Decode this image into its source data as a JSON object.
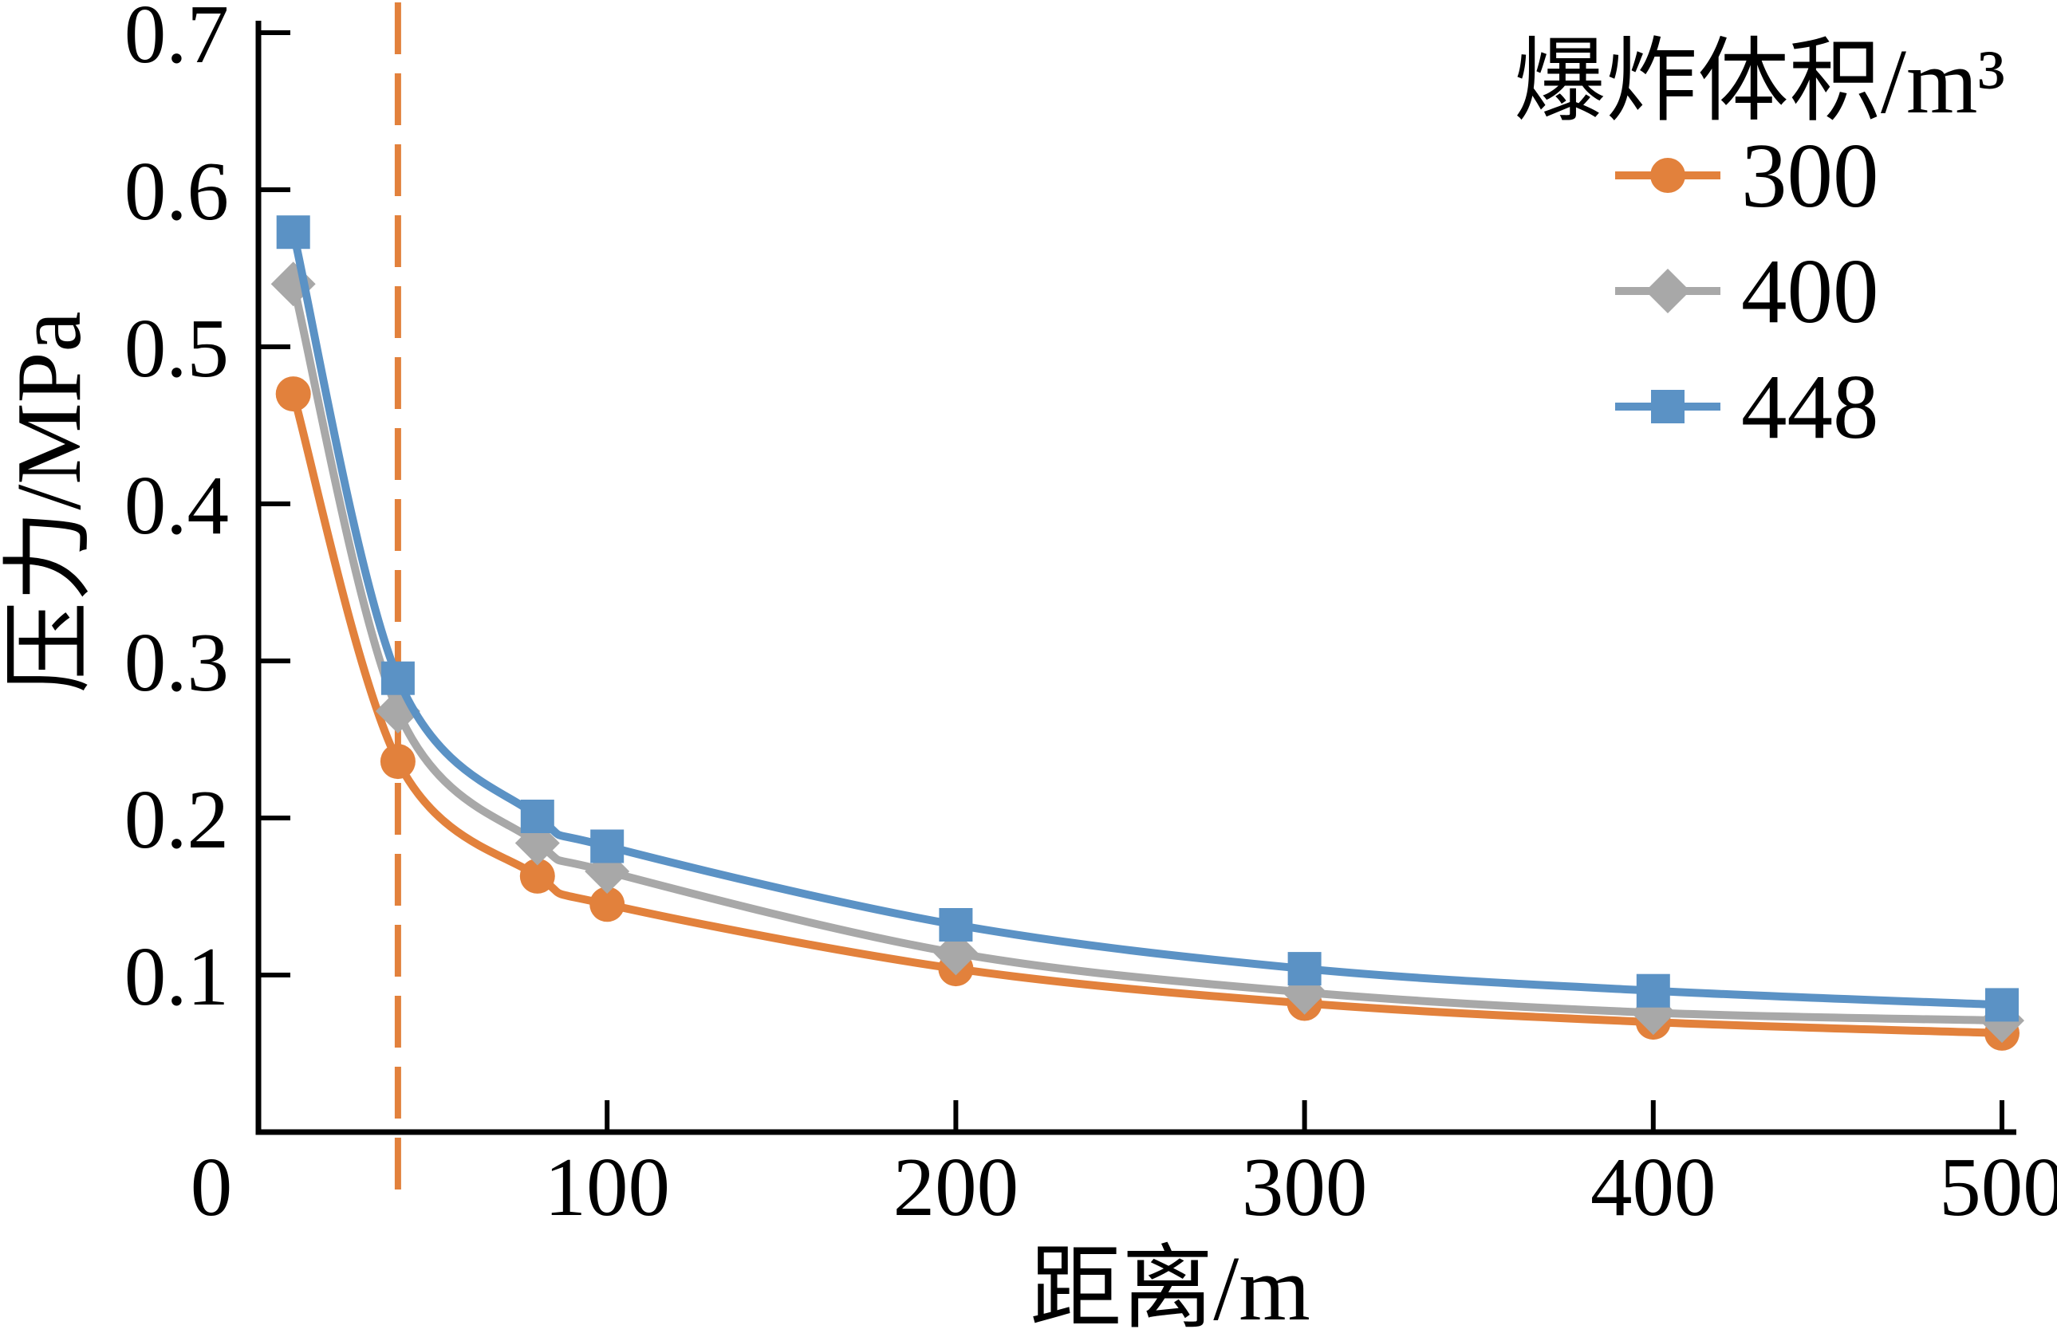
{
  "chart_data": {
    "type": "line",
    "title": "",
    "xlabel": "距离/m",
    "ylabel": "压力/MPa",
    "legend_title": "爆炸体积/m³",
    "legend_position": "top-right",
    "grid": false,
    "xlim": [
      0,
      500
    ],
    "ylim": [
      0,
      0.7
    ],
    "xticks": [
      0,
      100,
      200,
      300,
      400,
      500
    ],
    "yticks": [
      0.1,
      0.2,
      0.3,
      0.4,
      0.5,
      0.6,
      0.7
    ],
    "x": [
      10,
      40,
      80,
      100,
      200,
      300,
      400,
      500
    ],
    "series": [
      {
        "name": "300",
        "marker": "circle",
        "color": "#E2813C",
        "values": [
          0.47,
          0.236,
          0.163,
          0.145,
          0.104,
          0.082,
          0.07,
          0.063
        ]
      },
      {
        "name": "400",
        "marker": "diamond",
        "color": "#A8A8A8",
        "values": [
          0.54,
          0.268,
          0.184,
          0.166,
          0.114,
          0.089,
          0.076,
          0.071
        ]
      },
      {
        "name": "448",
        "marker": "square",
        "color": "#5B92C5",
        "values": [
          0.573,
          0.289,
          0.201,
          0.182,
          0.132,
          0.104,
          0.09,
          0.081
        ]
      }
    ],
    "reference_line": {
      "x": 40,
      "style": "dashed",
      "color": "#E2813C"
    },
    "axis_color": "#000000"
  }
}
